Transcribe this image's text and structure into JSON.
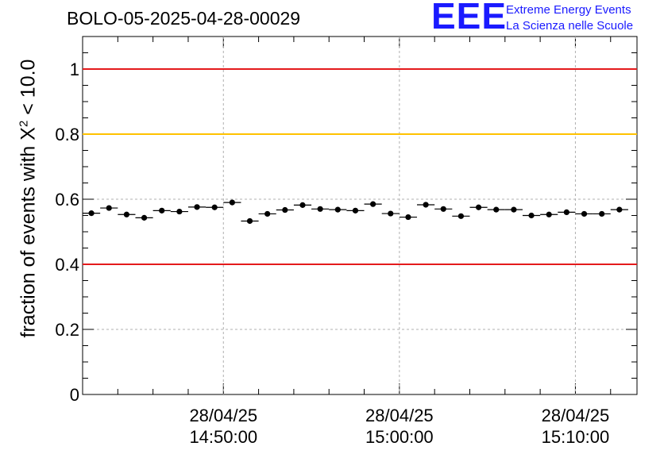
{
  "header": {
    "title": "BOLO-05-2025-04-28-00029",
    "logo_mark": "EEE",
    "logo_line1": "Extreme Energy Events",
    "logo_line2": "La Scienza nelle Scuole"
  },
  "colors": {
    "limit_red": "#e41a1c",
    "limit_orange": "#ffc200",
    "marker": "#000000",
    "grid": "#b0b0b0",
    "logo_blue": "#1a1aff"
  },
  "chart_data": {
    "type": "scatter",
    "title": "BOLO-05-2025-04-28-00029",
    "xlabel": "",
    "ylabel": {
      "prefix": "fraction of events with ",
      "symbol": "X",
      "superscript": "2",
      "suffix": " < 10.0"
    },
    "ylim": [
      0,
      1.1
    ],
    "yticks": [
      0,
      0.2,
      0.4,
      0.6,
      0.8,
      1
    ],
    "ytick_labels": [
      "0",
      "0.2",
      "0.4",
      "0.6",
      "0.8",
      "1"
    ],
    "x_axis_type": "time",
    "xlim": [
      "28/04/25 14:42:00",
      "28/04/25 15:13:30"
    ],
    "xticks": [
      {
        "date": "28/04/25",
        "time": "14:50:00"
      },
      {
        "date": "28/04/25",
        "time": "15:00:00"
      },
      {
        "date": "28/04/25",
        "time": "15:10:00"
      }
    ],
    "grid": true,
    "reference_lines": [
      {
        "y": 1.0,
        "color": "red"
      },
      {
        "y": 0.8,
        "color": "orange"
      },
      {
        "y": 0.4,
        "color": "red"
      }
    ],
    "series": [
      {
        "x": [
          "14:42:30",
          "14:43:30",
          "14:44:30",
          "14:45:30",
          "14:46:30",
          "14:47:30",
          "14:48:30",
          "14:49:30",
          "14:50:30",
          "14:51:30",
          "14:52:30",
          "14:53:30",
          "14:54:30",
          "14:55:30",
          "14:56:30",
          "14:57:30",
          "14:58:30",
          "14:59:30",
          "15:00:30",
          "15:01:30",
          "15:02:30",
          "15:03:30",
          "15:04:30",
          "15:05:30",
          "15:06:30",
          "15:07:30",
          "15:08:30",
          "15:09:30",
          "15:10:30",
          "15:11:30",
          "15:12:30"
        ],
        "y": [
          0.557,
          0.573,
          0.553,
          0.543,
          0.565,
          0.562,
          0.576,
          0.575,
          0.59,
          0.533,
          0.555,
          0.567,
          0.582,
          0.57,
          0.568,
          0.565,
          0.585,
          0.556,
          0.545,
          0.583,
          0.57,
          0.548,
          0.575,
          0.568,
          0.568,
          0.55,
          0.553,
          0.56,
          0.555,
          0.555,
          0.568
        ],
        "yerr": 0.006
      }
    ]
  }
}
